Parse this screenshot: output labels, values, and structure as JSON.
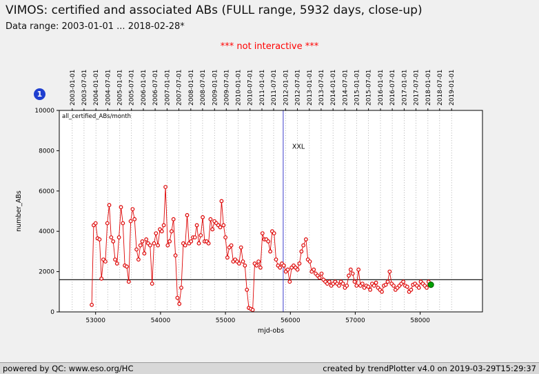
{
  "header": {
    "title": "VIMOS: certified and associated ABs (FULL range, 5932 days, close-up)",
    "data_range": "Data range: 2003-01-01 ... 2018-02-28*",
    "note": "*** not interactive ***"
  },
  "badge": {
    "label": "1"
  },
  "footer": {
    "left": "powered by QC: www.eso.org/HC",
    "right": "created by trendPlotter v4.0 on 2019-03-29T15:29:37"
  },
  "colors": {
    "page_bg": "#f0f0f0",
    "footer_bg": "#d8d8d8",
    "note_red": "#ff0000",
    "badge_blue": "#1f3fd0",
    "series_red": "#dd0000",
    "marker_green_fill": "#00a300",
    "marker_green_edge": "#006600",
    "event_blue": "#3b3bcc"
  },
  "chart_data": {
    "type": "line",
    "title": "",
    "xlabel": "mjd-obs",
    "ylabel": "number_ABs",
    "inner_label": "all_certified_ABs/month",
    "xlim": [
      52440,
      58960
    ],
    "ylim": [
      0,
      10000
    ],
    "x_ticks": [
      53000,
      54000,
      55000,
      56000,
      57000,
      58000
    ],
    "y_ticks": [
      0,
      2000,
      4000,
      6000,
      8000,
      10000
    ],
    "grid": "vertical-dotted-at-half-years",
    "legend_position": "none",
    "top_date_ticks": [
      [
        "2003-01-01",
        52640
      ],
      [
        "2003-07-01",
        52821
      ],
      [
        "2004-01-01",
        53005
      ],
      [
        "2004-07-01",
        53187
      ],
      [
        "2005-01-01",
        53371
      ],
      [
        "2005-07-01",
        53552
      ],
      [
        "2006-01-01",
        53736
      ],
      [
        "2006-07-01",
        53917
      ],
      [
        "2007-01-01",
        54101
      ],
      [
        "2007-07-01",
        54282
      ],
      [
        "2008-01-01",
        54466
      ],
      [
        "2008-07-01",
        54648
      ],
      [
        "2009-01-01",
        54832
      ],
      [
        "2009-07-01",
        55013
      ],
      [
        "2010-01-01",
        55197
      ],
      [
        "2010-07-01",
        55378
      ],
      [
        "2011-01-01",
        55562
      ],
      [
        "2011-07-01",
        55743
      ],
      [
        "2012-01-01",
        55927
      ],
      [
        "2012-07-01",
        56109
      ],
      [
        "2013-01-01",
        56293
      ],
      [
        "2013-07-01",
        56474
      ],
      [
        "2014-01-01",
        56658
      ],
      [
        "2014-07-01",
        56839
      ],
      [
        "2015-01-01",
        57023
      ],
      [
        "2015-07-01",
        57204
      ],
      [
        "2016-01-01",
        57388
      ],
      [
        "2016-07-01",
        57570
      ],
      [
        "2017-01-01",
        57754
      ],
      [
        "2017-07-01",
        57935
      ],
      [
        "2018-01-01",
        58119
      ],
      [
        "2018-07-01",
        58300
      ],
      [
        "2019-01-01",
        58484
      ]
    ],
    "reference_line": {
      "value": 1600
    },
    "event_line": {
      "mjd": 55890,
      "label": "XXL",
      "label_y": 8200,
      "color": "#3b3bcc"
    },
    "series": [
      {
        "name": "all_certified_ABs_per_month",
        "color": "#dd0000",
        "marker": "open-circle",
        "marker_fill": "#ffffff",
        "marker_radius": 2.3,
        "line": true,
        "points": [
          [
            52940,
            350
          ],
          [
            52970,
            4300
          ],
          [
            53000,
            4400
          ],
          [
            53030,
            3650
          ],
          [
            53060,
            3600
          ],
          [
            53090,
            1650
          ],
          [
            53120,
            2600
          ],
          [
            53150,
            2500
          ],
          [
            53180,
            4400
          ],
          [
            53210,
            5300
          ],
          [
            53240,
            3700
          ],
          [
            53270,
            3500
          ],
          [
            53300,
            2600
          ],
          [
            53330,
            2400
          ],
          [
            53360,
            3700
          ],
          [
            53390,
            5200
          ],
          [
            53420,
            4400
          ],
          [
            53450,
            2300
          ],
          [
            53480,
            2250
          ],
          [
            53510,
            1500
          ],
          [
            53540,
            4500
          ],
          [
            53570,
            5100
          ],
          [
            53600,
            4600
          ],
          [
            53630,
            3100
          ],
          [
            53660,
            2600
          ],
          [
            53690,
            3300
          ],
          [
            53720,
            3500
          ],
          [
            53750,
            2900
          ],
          [
            53780,
            3600
          ],
          [
            53810,
            3400
          ],
          [
            53840,
            3300
          ],
          [
            53870,
            1400
          ],
          [
            53900,
            3400
          ],
          [
            53930,
            3900
          ],
          [
            53960,
            3300
          ],
          [
            53990,
            4100
          ],
          [
            54020,
            4000
          ],
          [
            54050,
            4300
          ],
          [
            54076,
            6200
          ],
          [
            54110,
            3300
          ],
          [
            54140,
            3500
          ],
          [
            54170,
            4000
          ],
          [
            54200,
            4600
          ],
          [
            54230,
            2800
          ],
          [
            54260,
            700
          ],
          [
            54290,
            400
          ],
          [
            54320,
            1200
          ],
          [
            54350,
            3400
          ],
          [
            54380,
            3300
          ],
          [
            54410,
            4800
          ],
          [
            54440,
            3400
          ],
          [
            54470,
            3500
          ],
          [
            54500,
            3700
          ],
          [
            54530,
            3700
          ],
          [
            54560,
            4300
          ],
          [
            54590,
            3400
          ],
          [
            54620,
            3800
          ],
          [
            54650,
            4700
          ],
          [
            54680,
            3500
          ],
          [
            54710,
            3500
          ],
          [
            54740,
            3400
          ],
          [
            54770,
            4600
          ],
          [
            54800,
            4100
          ],
          [
            54830,
            4500
          ],
          [
            54860,
            4400
          ],
          [
            54890,
            4300
          ],
          [
            54920,
            4200
          ],
          [
            54940,
            5500
          ],
          [
            54970,
            4300
          ],
          [
            55000,
            3700
          ],
          [
            55030,
            2700
          ],
          [
            55060,
            3200
          ],
          [
            55090,
            3300
          ],
          [
            55120,
            2500
          ],
          [
            55150,
            2600
          ],
          [
            55180,
            2500
          ],
          [
            55210,
            2400
          ],
          [
            55240,
            3200
          ],
          [
            55270,
            2500
          ],
          [
            55300,
            2300
          ],
          [
            55330,
            1100
          ],
          [
            55360,
            200
          ],
          [
            55390,
            150
          ],
          [
            55420,
            100
          ],
          [
            55450,
            2400
          ],
          [
            55480,
            2300
          ],
          [
            55510,
            2500
          ],
          [
            55540,
            2200
          ],
          [
            55570,
            3900
          ],
          [
            55600,
            3600
          ],
          [
            55630,
            3600
          ],
          [
            55660,
            3500
          ],
          [
            55690,
            3000
          ],
          [
            55720,
            4000
          ],
          [
            55750,
            3900
          ],
          [
            55780,
            2600
          ],
          [
            55810,
            2300
          ],
          [
            55840,
            2200
          ],
          [
            55870,
            2400
          ],
          [
            55900,
            2300
          ],
          [
            55930,
            2000
          ],
          [
            55960,
            2100
          ],
          [
            55990,
            1500
          ],
          [
            56020,
            2200
          ],
          [
            56050,
            2300
          ],
          [
            56080,
            2200
          ],
          [
            56110,
            2100
          ],
          [
            56140,
            2400
          ],
          [
            56170,
            3000
          ],
          [
            56200,
            3300
          ],
          [
            56240,
            3600
          ],
          [
            56270,
            2600
          ],
          [
            56300,
            2500
          ],
          [
            56330,
            2000
          ],
          [
            56360,
            2100
          ],
          [
            56390,
            1900
          ],
          [
            56420,
            1800
          ],
          [
            56450,
            1700
          ],
          [
            56480,
            1900
          ],
          [
            56510,
            1600
          ],
          [
            56540,
            1500
          ],
          [
            56570,
            1400
          ],
          [
            56600,
            1500
          ],
          [
            56630,
            1300
          ],
          [
            56660,
            1400
          ],
          [
            56690,
            1500
          ],
          [
            56720,
            1400
          ],
          [
            56750,
            1300
          ],
          [
            56780,
            1500
          ],
          [
            56810,
            1400
          ],
          [
            56840,
            1200
          ],
          [
            56870,
            1300
          ],
          [
            56900,
            1800
          ],
          [
            56930,
            2100
          ],
          [
            56960,
            1900
          ],
          [
            56990,
            1500
          ],
          [
            57020,
            1300
          ],
          [
            57050,
            2100
          ],
          [
            57080,
            1300
          ],
          [
            57110,
            1400
          ],
          [
            57140,
            1200
          ],
          [
            57170,
            1300
          ],
          [
            57200,
            1250
          ],
          [
            57230,
            1100
          ],
          [
            57260,
            1400
          ],
          [
            57290,
            1300
          ],
          [
            57320,
            1450
          ],
          [
            57350,
            1200
          ],
          [
            57380,
            1100
          ],
          [
            57410,
            1000
          ],
          [
            57440,
            1300
          ],
          [
            57470,
            1350
          ],
          [
            57500,
            1500
          ],
          [
            57530,
            2000
          ],
          [
            57560,
            1400
          ],
          [
            57590,
            1300
          ],
          [
            57620,
            1100
          ],
          [
            57650,
            1200
          ],
          [
            57680,
            1300
          ],
          [
            57710,
            1400
          ],
          [
            57740,
            1500
          ],
          [
            57770,
            1300
          ],
          [
            57800,
            1250
          ],
          [
            57830,
            1000
          ],
          [
            57860,
            1100
          ],
          [
            57890,
            1350
          ],
          [
            57920,
            1400
          ],
          [
            57950,
            1300
          ],
          [
            57980,
            1200
          ],
          [
            58010,
            1500
          ],
          [
            58040,
            1400
          ],
          [
            58070,
            1300
          ],
          [
            58100,
            1200
          ],
          [
            58130,
            1500
          ],
          [
            58165,
            1350
          ]
        ]
      },
      {
        "name": "latest_month",
        "color": "#006600",
        "marker": "filled-circle",
        "marker_fill": "#00a300",
        "marker_radius": 4,
        "line": false,
        "points": [
          [
            58165,
            1350
          ]
        ]
      }
    ]
  }
}
